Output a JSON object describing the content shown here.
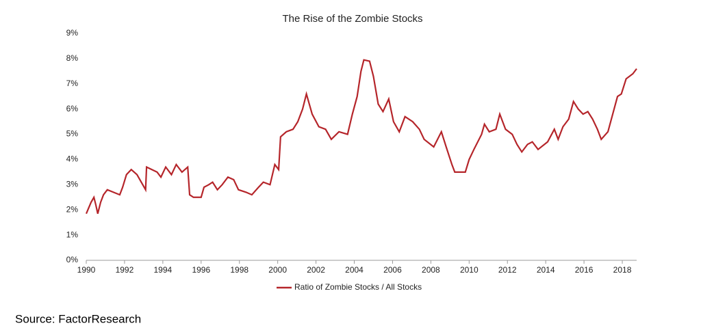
{
  "chart_data": {
    "type": "line",
    "title": "The Rise of the Zombie Stocks",
    "source": "Source: FactorResearch",
    "xlim": [
      1990,
      2018.75
    ],
    "xticks": [
      1990,
      1992,
      1994,
      1996,
      1998,
      2000,
      2002,
      2004,
      2006,
      2008,
      2010,
      2012,
      2014,
      2016,
      2018
    ],
    "ylim": [
      0,
      9
    ],
    "yticks": [
      {
        "value": 0,
        "label": "0%"
      },
      {
        "value": 1,
        "label": "1%"
      },
      {
        "value": 2,
        "label": "2%"
      },
      {
        "value": 3,
        "label": "3%"
      },
      {
        "value": 4,
        "label": "4%"
      },
      {
        "value": 5,
        "label": "5%"
      },
      {
        "value": 6,
        "label": "6%"
      },
      {
        "value": 7,
        "label": "7%"
      },
      {
        "value": 8,
        "label": "8%"
      },
      {
        "value": 9,
        "label": "9%"
      }
    ],
    "grid": false,
    "legend": "bottom",
    "x": [
      1990.0,
      1990.25,
      1990.4,
      1990.5,
      1990.6,
      1990.75,
      1990.9,
      1991.1,
      1991.75,
      1991.9,
      1992.1,
      1992.35,
      1992.65,
      1993.1,
      1993.15,
      1993.7,
      1993.9,
      1994.15,
      1994.45,
      1994.7,
      1995.0,
      1995.3,
      1995.4,
      1995.6,
      1996.0,
      1996.15,
      1996.4,
      1996.6,
      1996.85,
      1997.1,
      1997.4,
      1997.7,
      1997.95,
      1998.35,
      1998.65,
      1999.0,
      1999.25,
      1999.6,
      1999.85,
      2000.05,
      2000.15,
      2000.45,
      2000.8,
      2001.05,
      2001.3,
      2001.5,
      2001.8,
      2002.15,
      2002.5,
      2002.8,
      2003.2,
      2003.65,
      2003.9,
      2004.15,
      2004.35,
      2004.5,
      2004.8,
      2005.0,
      2005.25,
      2005.5,
      2005.8,
      2006.05,
      2006.35,
      2006.65,
      2007.05,
      2007.4,
      2007.65,
      2008.15,
      2008.55,
      2008.8,
      2009.1,
      2009.25,
      2009.8,
      2010.0,
      2010.25,
      2010.65,
      2010.8,
      2011.05,
      2011.4,
      2011.6,
      2011.9,
      2012.25,
      2012.5,
      2012.75,
      2013.05,
      2013.3,
      2013.6,
      2014.1,
      2014.45,
      2014.65,
      2014.9,
      2015.2,
      2015.45,
      2015.7,
      2015.95,
      2016.2,
      2016.45,
      2016.7,
      2016.9,
      2017.25,
      2017.5,
      2017.75,
      2017.95,
      2018.2,
      2018.55,
      2018.75
    ],
    "series": [
      {
        "name": "Ratio of Zombie Stocks / All Stocks",
        "color": "#b5252a",
        "values": [
          1.85,
          2.3,
          2.5,
          2.2,
          1.85,
          2.3,
          2.6,
          2.8,
          2.6,
          2.9,
          3.4,
          3.6,
          3.4,
          2.8,
          3.7,
          3.5,
          3.3,
          3.7,
          3.4,
          3.8,
          3.5,
          3.7,
          2.6,
          2.5,
          2.5,
          2.9,
          3.0,
          3.1,
          2.8,
          3.0,
          3.3,
          3.2,
          2.8,
          2.7,
          2.6,
          2.9,
          3.1,
          3.0,
          3.8,
          3.6,
          4.9,
          5.1,
          5.2,
          5.5,
          6.0,
          6.6,
          5.8,
          5.3,
          5.2,
          4.8,
          5.1,
          5.0,
          5.8,
          6.5,
          7.5,
          7.95,
          7.9,
          7.3,
          6.2,
          5.9,
          6.4,
          5.5,
          5.1,
          5.7,
          5.5,
          5.2,
          4.8,
          4.5,
          5.1,
          4.5,
          3.8,
          3.5,
          3.5,
          4.0,
          4.4,
          5.0,
          5.4,
          5.1,
          5.2,
          5.8,
          5.2,
          5.0,
          4.6,
          4.3,
          4.6,
          4.7,
          4.4,
          4.7,
          5.2,
          4.8,
          5.3,
          5.6,
          6.3,
          6.0,
          5.8,
          5.9,
          5.6,
          5.2,
          4.8,
          5.1,
          5.8,
          6.5,
          6.6,
          7.2,
          7.4,
          7.6
        ]
      }
    ]
  }
}
